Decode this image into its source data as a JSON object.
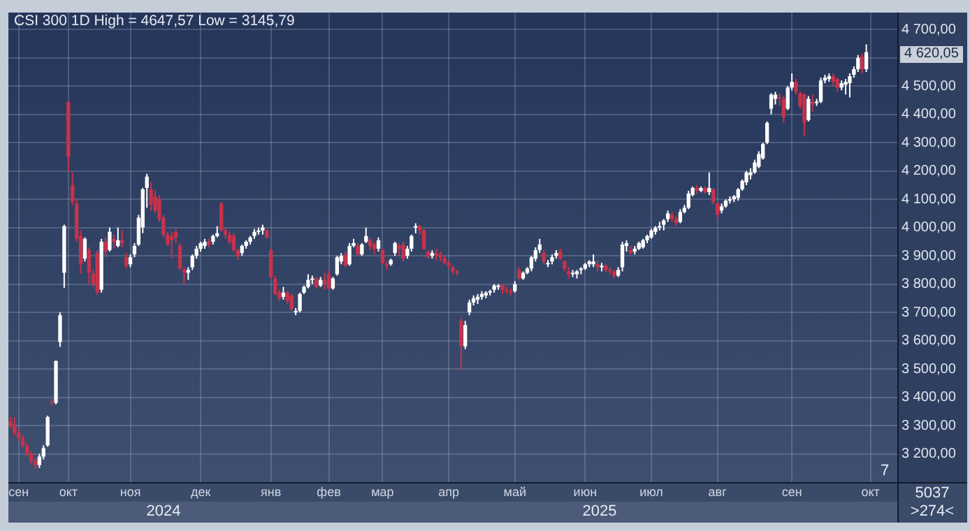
{
  "chart_data": {
    "type": "candlestick",
    "title": "CSI 300 1D High = 4647,57 Low = 3145,79",
    "grid": true,
    "legend": false,
    "ylim": [
      3100,
      4760
    ],
    "yticks": [
      {
        "value": 3200,
        "label": "3 200,00"
      },
      {
        "value": 3300,
        "label": "3 300,00"
      },
      {
        "value": 3400,
        "label": "3 400,00"
      },
      {
        "value": 3500,
        "label": "3 500,00"
      },
      {
        "value": 3600,
        "label": "3 600,00"
      },
      {
        "value": 3700,
        "label": "3 700,00"
      },
      {
        "value": 3800,
        "label": "3 800,00"
      },
      {
        "value": 3900,
        "label": "3 900,00"
      },
      {
        "value": 4000,
        "label": "4 000,00"
      },
      {
        "value": 4100,
        "label": "4 100,00"
      },
      {
        "value": 4200,
        "label": "4 200,00"
      },
      {
        "value": 4300,
        "label": "4 300,00"
      },
      {
        "value": 4400,
        "label": "4 400,00"
      },
      {
        "value": 4500,
        "label": "4 500,00"
      },
      {
        "value": 4600,
        "label": null
      },
      {
        "value": 4700,
        "label": "4 700,00"
      }
    ],
    "annotations": [
      "2024",
      "2025",
      "7",
      "5037",
      ">274<",
      "4 620,05"
    ],
    "categories": [
      null,
      null,
      "сен",
      null,
      null,
      null,
      null,
      null,
      null,
      null,
      null,
      null,
      null,
      null,
      "окт",
      null,
      null,
      null,
      null,
      null,
      null,
      null,
      null,
      null,
      null,
      null,
      null,
      null,
      null,
      "ноя",
      null,
      null,
      null,
      null,
      null,
      null,
      null,
      null,
      null,
      null,
      null,
      null,
      null,
      null,
      null,
      null,
      "дек",
      null,
      null,
      null,
      null,
      null,
      null,
      null,
      null,
      null,
      null,
      null,
      null,
      null,
      null,
      null,
      null,
      "янв",
      null,
      null,
      null,
      null,
      null,
      null,
      null,
      null,
      null,
      null,
      null,
      null,
      null,
      "фев",
      null,
      null,
      null,
      null,
      null,
      null,
      null,
      null,
      null,
      null,
      null,
      null,
      "мар",
      null,
      null,
      null,
      null,
      null,
      null,
      null,
      null,
      null,
      null,
      null,
      null,
      null,
      null,
      null,
      "апр",
      null,
      null,
      null,
      null,
      null,
      null,
      null,
      null,
      null,
      null,
      null,
      null,
      null,
      null,
      null,
      "май",
      null,
      null,
      null,
      null,
      null,
      null,
      null,
      null,
      null,
      null,
      null,
      null,
      null,
      null,
      null,
      null,
      "июн",
      null,
      null,
      null,
      null,
      null,
      null,
      null,
      null,
      null,
      null,
      null,
      null,
      null,
      null,
      null,
      "июл",
      null,
      null,
      null,
      null,
      null,
      null,
      null,
      null,
      null,
      null,
      null,
      null,
      null,
      null,
      null,
      "авг",
      null,
      null,
      null,
      null,
      null,
      null,
      null,
      null,
      null,
      null,
      null,
      null,
      null,
      null,
      null,
      null,
      null,
      "сен",
      null,
      null,
      null,
      null,
      null,
      null,
      null,
      null,
      null,
      null,
      null,
      null,
      null,
      null,
      null,
      null,
      null,
      null,
      "окт",
      null,
      null,
      null,
      null,
      null,
      null
    ],
    "ohlc": [
      [
        3315,
        3330,
        3290,
        3300
      ],
      [
        3300,
        3330,
        3265,
        3275
      ],
      [
        3275,
        3285,
        3245,
        3255
      ],
      [
        3255,
        3265,
        3220,
        3230
      ],
      [
        3230,
        3235,
        3190,
        3200
      ],
      [
        3200,
        3210,
        3165,
        3175
      ],
      [
        3175,
        3185,
        3145.79,
        3160
      ],
      [
        3160,
        3200,
        3150,
        3190
      ],
      [
        3190,
        3230,
        3180,
        3220
      ],
      [
        3230,
        3335,
        3225,
        3330
      ],
      [
        3385,
        3395,
        3370,
        3380
      ],
      [
        3380,
        3530,
        3375,
        3528
      ],
      [
        3595,
        3700,
        3578,
        3690
      ],
      [
        3840,
        4010,
        3787,
        4005
      ],
      [
        4443,
        4448,
        4195,
        4250
      ],
      [
        4150,
        4195,
        4080,
        4090
      ],
      [
        4085,
        4100,
        3950,
        3960
      ],
      [
        3970,
        3990,
        3837,
        3870
      ],
      [
        3890,
        3965,
        3880,
        3960
      ],
      [
        3920,
        3930,
        3803,
        3840
      ],
      [
        3837,
        3850,
        3790,
        3800
      ],
      [
        3910,
        3920,
        3762,
        3770
      ],
      [
        3780,
        3960,
        3770,
        3950
      ],
      [
        3950,
        3965,
        3895,
        3915
      ],
      [
        3920,
        4000,
        3915,
        3985
      ],
      [
        3960,
        3975,
        3925,
        3950
      ],
      [
        3935,
        4000,
        3930,
        3955
      ],
      [
        3955,
        3990,
        3930,
        3945
      ],
      [
        3895,
        3910,
        3855,
        3865
      ],
      [
        3870,
        3905,
        3860,
        3895
      ],
      [
        3905,
        3945,
        3895,
        3935
      ],
      [
        3940,
        4045,
        3935,
        4035
      ],
      [
        4000,
        4140,
        3980,
        4135
      ],
      [
        4140,
        4190,
        4070,
        4180
      ],
      [
        4135,
        4160,
        4060,
        4080
      ],
      [
        4110,
        4130,
        4050,
        4060
      ],
      [
        4100,
        4115,
        4020,
        4030
      ],
      [
        4035,
        4045,
        3965,
        3975
      ],
      [
        3975,
        3985,
        3935,
        3940
      ],
      [
        3970,
        3985,
        3890,
        3955
      ],
      [
        3985,
        3995,
        3945,
        3965
      ],
      [
        3935,
        3945,
        3850,
        3855
      ],
      [
        3850,
        3860,
        3800,
        3840
      ],
      [
        3840,
        3860,
        3815,
        3850
      ],
      [
        3860,
        3905,
        3850,
        3900
      ],
      [
        3900,
        3935,
        3890,
        3925
      ],
      [
        3925,
        3950,
        3915,
        3945
      ],
      [
        3935,
        3960,
        3925,
        3950
      ],
      [
        3950,
        3960,
        3930,
        3940
      ],
      [
        3950,
        3975,
        3940,
        3970
      ],
      [
        3970,
        4005,
        3965,
        3980
      ],
      [
        4085,
        4090,
        3985,
        3990
      ],
      [
        3990,
        4000,
        3960,
        3975
      ],
      [
        3975,
        3985,
        3940,
        3950
      ],
      [
        3970,
        3980,
        3915,
        3920
      ],
      [
        3920,
        3925,
        3885,
        3900
      ],
      [
        3910,
        3940,
        3900,
        3935
      ],
      [
        3935,
        3955,
        3925,
        3950
      ],
      [
        3950,
        3970,
        3940,
        3965
      ],
      [
        3970,
        3995,
        3960,
        3985
      ],
      [
        3985,
        4000,
        3975,
        3990
      ],
      [
        3990,
        4010,
        3975,
        4000
      ],
      [
        3990,
        3995,
        3960,
        3965
      ],
      [
        3920,
        3925,
        3820,
        3825
      ],
      [
        3820,
        3830,
        3760,
        3765
      ],
      [
        3770,
        3780,
        3740,
        3750
      ],
      [
        3755,
        3790,
        3745,
        3770
      ],
      [
        3770,
        3775,
        3730,
        3740
      ],
      [
        3760,
        3765,
        3705,
        3712
      ],
      [
        3700,
        3715,
        3690,
        3705
      ],
      [
        3705,
        3770,
        3700,
        3765
      ],
      [
        3770,
        3795,
        3765,
        3790
      ],
      [
        3790,
        3835,
        3785,
        3815
      ],
      [
        3815,
        3830,
        3800,
        3820
      ],
      [
        3820,
        3825,
        3785,
        3790
      ],
      [
        3795,
        3825,
        3790,
        3815
      ],
      [
        3815,
        3840,
        3780,
        3800
      ],
      [
        3835,
        3850,
        3780,
        3785
      ],
      [
        3785,
        3825,
        3780,
        3820
      ],
      [
        3835,
        3900,
        3830,
        3895
      ],
      [
        3880,
        3910,
        3870,
        3900
      ],
      [
        3905,
        3915,
        3860,
        3865
      ],
      [
        3870,
        3945,
        3865,
        3935
      ],
      [
        3935,
        3960,
        3930,
        3945
      ],
      [
        3935,
        3945,
        3900,
        3905
      ],
      [
        3905,
        3945,
        3900,
        3940
      ],
      [
        3950,
        4000,
        3945,
        3970
      ],
      [
        3955,
        3965,
        3920,
        3935
      ],
      [
        3940,
        3950,
        3905,
        3925
      ],
      [
        3925,
        3965,
        3915,
        3955
      ],
      [
        3920,
        3925,
        3870,
        3875
      ],
      [
        3870,
        3880,
        3850,
        3865
      ],
      [
        3870,
        3890,
        3865,
        3885
      ],
      [
        3910,
        3950,
        3900,
        3945
      ],
      [
        3935,
        3945,
        3900,
        3925
      ],
      [
        3940,
        3950,
        3880,
        3890
      ],
      [
        3900,
        3935,
        3890,
        3925
      ],
      [
        3925,
        3975,
        3915,
        3970
      ],
      [
        4000,
        4015,
        3980,
        4005
      ],
      [
        4005,
        4010,
        3975,
        3990
      ],
      [
        3990,
        3995,
        3920,
        3925
      ],
      [
        3915,
        3920,
        3890,
        3895
      ],
      [
        3900,
        3920,
        3890,
        3910
      ],
      [
        3910,
        3925,
        3885,
        3900
      ],
      [
        3905,
        3915,
        3880,
        3895
      ],
      [
        3890,
        3900,
        3870,
        3875
      ],
      [
        3875,
        3880,
        3855,
        3865
      ],
      [
        3860,
        3865,
        3835,
        3845
      ],
      [
        3845,
        3850,
        3830,
        3840
      ],
      [
        3670,
        3680,
        3495,
        3580
      ],
      [
        3580,
        3670,
        3570,
        3655
      ],
      [
        3700,
        3745,
        3690,
        3735
      ],
      [
        3735,
        3760,
        3725,
        3750
      ],
      [
        3745,
        3765,
        3730,
        3755
      ],
      [
        3755,
        3775,
        3745,
        3765
      ],
      [
        3760,
        3775,
        3750,
        3770
      ],
      [
        3770,
        3780,
        3760,
        3775
      ],
      [
        3780,
        3800,
        3770,
        3795
      ],
      [
        3790,
        3800,
        3780,
        3795
      ],
      [
        3795,
        3800,
        3765,
        3780
      ],
      [
        3780,
        3790,
        3765,
        3775
      ],
      [
        3775,
        3785,
        3760,
        3770
      ],
      [
        3775,
        3810,
        3770,
        3800
      ],
      [
        3850,
        3860,
        3815,
        3820
      ],
      [
        3820,
        3845,
        3815,
        3840
      ],
      [
        3840,
        3860,
        3835,
        3855
      ],
      [
        3855,
        3900,
        3845,
        3895
      ],
      [
        3890,
        3930,
        3880,
        3920
      ],
      [
        3920,
        3960,
        3910,
        3940
      ],
      [
        3910,
        3920,
        3870,
        3880
      ],
      [
        3870,
        3885,
        3860,
        3875
      ],
      [
        3880,
        3905,
        3870,
        3895
      ],
      [
        3900,
        3920,
        3890,
        3910
      ],
      [
        3915,
        3925,
        3885,
        3890
      ],
      [
        3880,
        3885,
        3845,
        3855
      ],
      [
        3845,
        3860,
        3820,
        3835
      ],
      [
        3835,
        3850,
        3825,
        3840
      ],
      [
        3835,
        3850,
        3820,
        3845
      ],
      [
        3850,
        3860,
        3835,
        3855
      ],
      [
        3855,
        3875,
        3850,
        3870
      ],
      [
        3870,
        3885,
        3860,
        3880
      ],
      [
        3870,
        3905,
        3860,
        3880
      ],
      [
        3870,
        3885,
        3845,
        3860
      ],
      [
        3860,
        3875,
        3845,
        3865
      ],
      [
        3865,
        3870,
        3840,
        3850
      ],
      [
        3850,
        3860,
        3835,
        3845
      ],
      [
        3845,
        3850,
        3820,
        3830
      ],
      [
        3830,
        3860,
        3825,
        3850
      ],
      [
        3860,
        3950,
        3845,
        3940
      ],
      [
        3935,
        3955,
        3915,
        3945
      ],
      [
        3920,
        3935,
        3905,
        3910
      ],
      [
        3915,
        3935,
        3905,
        3925
      ],
      [
        3925,
        3950,
        3920,
        3945
      ],
      [
        3930,
        3960,
        3925,
        3955
      ],
      [
        3955,
        3975,
        3945,
        3970
      ],
      [
        3965,
        3995,
        3960,
        3990
      ],
      [
        3985,
        4005,
        3975,
        4000
      ],
      [
        4000,
        4020,
        3990,
        4005
      ],
      [
        4010,
        4030,
        3990,
        4025
      ],
      [
        4030,
        4060,
        4020,
        4050
      ],
      [
        4045,
        4055,
        4020,
        4030
      ],
      [
        4030,
        4040,
        4005,
        4015
      ],
      [
        4020,
        4065,
        4015,
        4055
      ],
      [
        4055,
        4080,
        4050,
        4070
      ],
      [
        4070,
        4130,
        4065,
        4120
      ],
      [
        4115,
        4145,
        4110,
        4140
      ],
      [
        4140,
        4150,
        4120,
        4130
      ],
      [
        4130,
        4145,
        4125,
        4140
      ],
      [
        4140,
        4145,
        4120,
        4125
      ],
      [
        4125,
        4195,
        4115,
        4140
      ],
      [
        4135,
        4140,
        4080,
        4090
      ],
      [
        4085,
        4090,
        4030,
        4045
      ],
      [
        4060,
        4085,
        4050,
        4075
      ],
      [
        4075,
        4100,
        4070,
        4095
      ],
      [
        4095,
        4110,
        4085,
        4100
      ],
      [
        4100,
        4115,
        4090,
        4110
      ],
      [
        4105,
        4140,
        4095,
        4135
      ],
      [
        4135,
        4170,
        4130,
        4165
      ],
      [
        4160,
        4200,
        4150,
        4195
      ],
      [
        4185,
        4210,
        4170,
        4195
      ],
      [
        4195,
        4240,
        4190,
        4230
      ],
      [
        4215,
        4270,
        4210,
        4260
      ],
      [
        4245,
        4300,
        4240,
        4295
      ],
      [
        4300,
        4375,
        4295,
        4370
      ],
      [
        4420,
        4475,
        4400,
        4470
      ],
      [
        4455,
        4480,
        4435,
        4470
      ],
      [
        4460,
        4475,
        4430,
        4455
      ],
      [
        4455,
        4465,
        4370,
        4390
      ],
      [
        4420,
        4500,
        4415,
        4495
      ],
      [
        4495,
        4545,
        4485,
        4515
      ],
      [
        4515,
        4525,
        4470,
        4480
      ],
      [
        4475,
        4480,
        4420,
        4430
      ],
      [
        4470,
        4475,
        4323,
        4370
      ],
      [
        4380,
        4465,
        4375,
        4455
      ],
      [
        4445,
        4470,
        4410,
        4435
      ],
      [
        4440,
        4455,
        4430,
        4445
      ],
      [
        4445,
        4530,
        4440,
        4520
      ],
      [
        4520,
        4540,
        4510,
        4530
      ],
      [
        4525,
        4545,
        4515,
        4535
      ],
      [
        4535,
        4545,
        4500,
        4515
      ],
      [
        4525,
        4530,
        4480,
        4495
      ],
      [
        4495,
        4520,
        4485,
        4510
      ],
      [
        4505,
        4525,
        4470,
        4515
      ],
      [
        4510,
        4545,
        4460,
        4535
      ],
      [
        4540,
        4570,
        4530,
        4560
      ],
      [
        4560,
        4610,
        4550,
        4600
      ],
      [
        4605,
        4615,
        4545,
        4560
      ],
      [
        4560,
        4647.57,
        4550,
        4620.05
      ],
      null,
      null,
      null,
      null,
      null,
      null,
      null
    ]
  }
}
